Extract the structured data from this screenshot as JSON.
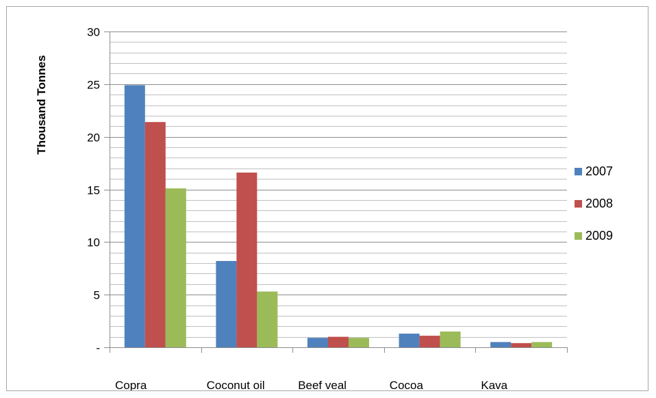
{
  "chart_data": {
    "type": "bar",
    "ylabel": "Thousand Tonnes",
    "ylim": [
      0,
      30
    ],
    "ytick_labels": [
      "-",
      "5",
      "10",
      "15",
      "20",
      "25",
      "30"
    ],
    "ytick_values": [
      0,
      5,
      10,
      15,
      20,
      25,
      30
    ],
    "minor_gridline_step": 1,
    "grid": true,
    "legend_position": "right",
    "categories": [
      "Copra",
      "Coconut oil",
      "Beef veal",
      "Cocoa",
      "Kava"
    ],
    "series": [
      {
        "name": "2007",
        "color": "#4f81bd",
        "values": [
          24.9,
          8.2,
          0.9,
          1.3,
          0.5
        ]
      },
      {
        "name": "2008",
        "color": "#c0504d",
        "values": [
          21.4,
          16.6,
          1.0,
          1.1,
          0.4
        ]
      },
      {
        "name": "2009",
        "color": "#9bbb59",
        "values": [
          15.1,
          5.3,
          0.9,
          1.5,
          0.5
        ]
      }
    ]
  }
}
